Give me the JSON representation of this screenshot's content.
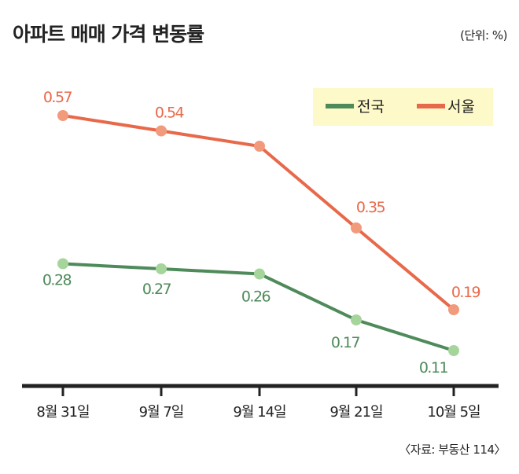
{
  "chart_data": {
    "type": "line",
    "title": "아파트 매매 가격 변동률",
    "unit_note": "(단위: %)",
    "source": "〈자료: 부동산 114〉",
    "categories": [
      "8월 31일",
      "9월 7일",
      "9월 14일",
      "9월 21일",
      "10월 5일"
    ],
    "series": [
      {
        "name": "전국",
        "values": [
          0.28,
          0.27,
          0.26,
          0.17,
          0.11
        ],
        "labels": [
          "0.28",
          "0.27",
          "0.26",
          "0.17",
          "0.11"
        ],
        "line_color": "#4e8a5a",
        "point_color": "#a6d59c"
      },
      {
        "name": "서울",
        "values": [
          0.57,
          0.54,
          0.51,
          0.35,
          0.19
        ],
        "labels": [
          "0.57",
          "0.54",
          "",
          "0.35",
          "0.19"
        ],
        "line_color": "#e8694a",
        "point_color": "#f29a7c"
      }
    ],
    "ylim": [
      0.05,
      0.62
    ],
    "grid": false,
    "legend_position": "top-right",
    "legend_background": "#fdf9c8"
  }
}
